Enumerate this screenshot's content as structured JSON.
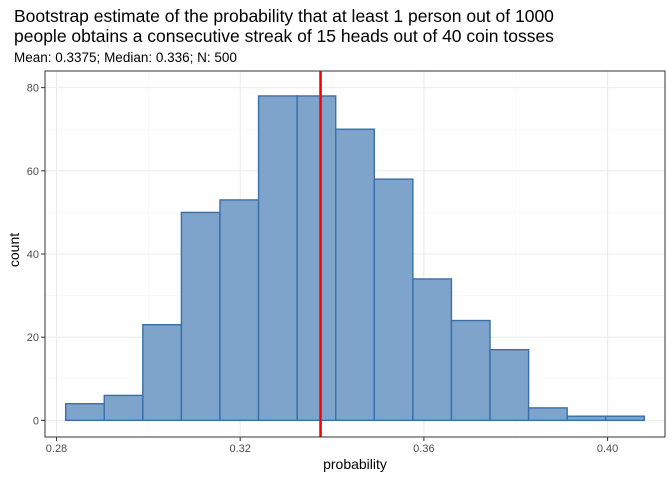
{
  "chart_data": {
    "type": "bar",
    "title_lines": [
      "Bootstrap estimate of the probability that at least 1 person out of 1000",
      "people obtains a consecutive streak of 15 heads out of 40 coin tosses"
    ],
    "subtitle": "Mean: 0.3375;  Median: 0.336;  N: 500",
    "xlabel": "probability",
    "ylabel": "count",
    "xlim": [
      0.2775,
      0.4125
    ],
    "ylim": [
      -4,
      84
    ],
    "x_ticks": [
      0.28,
      0.32,
      0.36,
      0.4
    ],
    "x_tick_labels": [
      "0.28",
      "0.32",
      "0.36",
      "0.40"
    ],
    "y_ticks": [
      0,
      20,
      40,
      60,
      80
    ],
    "y_tick_labels": [
      "0",
      "20",
      "40",
      "60",
      "80"
    ],
    "bins": [
      {
        "x0": 0.282,
        "x1": 0.2904,
        "count": 4
      },
      {
        "x0": 0.2904,
        "x1": 0.2988,
        "count": 6
      },
      {
        "x0": 0.2988,
        "x1": 0.3072,
        "count": 23
      },
      {
        "x0": 0.3072,
        "x1": 0.3156,
        "count": 50
      },
      {
        "x0": 0.3156,
        "x1": 0.324,
        "count": 53
      },
      {
        "x0": 0.324,
        "x1": 0.3324,
        "count": 78
      },
      {
        "x0": 0.3324,
        "x1": 0.3408,
        "count": 78
      },
      {
        "x0": 0.3408,
        "x1": 0.3492,
        "count": 70
      },
      {
        "x0": 0.3492,
        "x1": 0.3576,
        "count": 58
      },
      {
        "x0": 0.3576,
        "x1": 0.366,
        "count": 34
      },
      {
        "x0": 0.366,
        "x1": 0.3744,
        "count": 24
      },
      {
        "x0": 0.3744,
        "x1": 0.3828,
        "count": 17
      },
      {
        "x0": 0.3828,
        "x1": 0.3912,
        "count": 3
      },
      {
        "x0": 0.3912,
        "x1": 0.3996,
        "count": 1
      },
      {
        "x0": 0.3996,
        "x1": 0.408,
        "count": 1
      }
    ],
    "reference_line": {
      "x": 0.3375
    },
    "grid": true,
    "colors": {
      "bar_fill": "#7ea4cb",
      "bar_stroke": "#3b6fa8",
      "reference_line": "#ff0000",
      "grid_major": "#ebebeb",
      "grid_minor": "#f5f5f5",
      "panel_border": "#333333"
    }
  }
}
